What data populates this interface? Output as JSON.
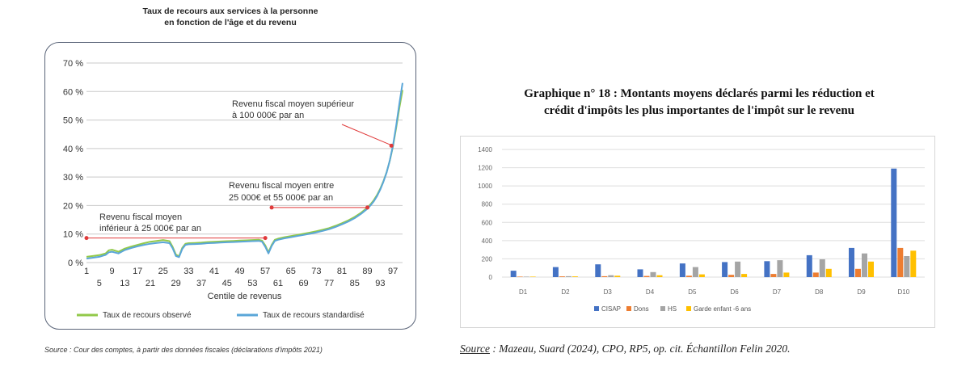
{
  "left": {
    "title_line1": "Taux de recours aux services à la personne",
    "title_line2": "en fonction de l'âge et du revenu",
    "source": "Source : Cour des comptes, à partir des données fiscales (déclarations d'impôts 2021)"
  },
  "right": {
    "title_line1": "Graphique n° 18 : Montants moyens déclarés parmi les réduction et",
    "title_line2": "crédit d'impôts les plus importantes de l'impôt sur le revenu",
    "source_label": "Source",
    "source_rest": " : Mazeau, Suard (2024), CPO, RP5, op. cit. Échantillon Felin 2020."
  },
  "chart_data": [
    {
      "type": "line",
      "xlabel": "Centile de revenus",
      "xlim": [
        1,
        100
      ],
      "ylim": [
        0,
        70
      ],
      "grid": true,
      "y_ticks": [
        "0 %",
        "10 %",
        "20 %",
        "30 %",
        "40 %",
        "50 %",
        "60 %",
        "70 %"
      ],
      "y_tick_values": [
        0,
        10,
        20,
        30,
        40,
        50,
        60,
        70
      ],
      "x_ticks_top": [
        "1",
        "9",
        "17",
        "25",
        "33",
        "41",
        "49",
        "57",
        "65",
        "73",
        "81",
        "89",
        "97"
      ],
      "x_ticks_bottom": [
        "5",
        "13",
        "21",
        "29",
        "37",
        "45",
        "53",
        "61",
        "69",
        "77",
        "85",
        "93"
      ],
      "legend_placement": "bottom",
      "series": [
        {
          "name": "Taux de recours observé",
          "color": "#92c94a",
          "x": [
            1,
            3,
            5,
            7,
            8,
            9,
            11,
            13,
            15,
            17,
            19,
            21,
            23,
            25,
            27,
            28,
            29,
            30,
            31,
            32,
            33,
            35,
            37,
            39,
            41,
            43,
            45,
            47,
            49,
            51,
            53,
            55,
            56,
            57,
            58,
            59,
            60,
            61,
            63,
            65,
            67,
            69,
            71,
            73,
            75,
            77,
            79,
            81,
            83,
            85,
            87,
            89,
            90,
            91,
            92,
            93,
            94,
            95,
            96,
            97,
            98,
            99,
            100
          ],
          "values": [
            2,
            2.3,
            2.6,
            3.2,
            4.3,
            4.5,
            3.8,
            4.9,
            5.6,
            6.2,
            6.8,
            7.3,
            7.6,
            7.9,
            7.5,
            5.5,
            2.8,
            2.2,
            5.2,
            6.6,
            6.8,
            6.9,
            7.0,
            7.2,
            7.3,
            7.4,
            7.5,
            7.6,
            7.7,
            7.8,
            7.9,
            8.0,
            7.7,
            6.0,
            3.6,
            6.2,
            8.0,
            8.4,
            8.9,
            9.3,
            9.7,
            10.1,
            10.5,
            11.0,
            11.5,
            12.1,
            12.9,
            13.8,
            14.8,
            16.0,
            17.5,
            19.3,
            20.5,
            21.9,
            23.7,
            25.9,
            28.5,
            31.7,
            35.7,
            40.8,
            47.2,
            54.3,
            60.5
          ]
        },
        {
          "name": "Taux de recours standardisé",
          "color": "#5aa6d8",
          "x": [
            1,
            3,
            5,
            7,
            8,
            9,
            11,
            13,
            15,
            17,
            19,
            21,
            23,
            25,
            27,
            28,
            29,
            30,
            31,
            32,
            33,
            35,
            37,
            39,
            41,
            43,
            45,
            47,
            49,
            51,
            53,
            55,
            56,
            57,
            58,
            59,
            60,
            61,
            63,
            65,
            67,
            69,
            71,
            73,
            75,
            77,
            79,
            81,
            83,
            85,
            87,
            89,
            90,
            91,
            92,
            93,
            94,
            95,
            96,
            97,
            98,
            99,
            100
          ],
          "values": [
            1.4,
            1.7,
            2.0,
            2.7,
            3.6,
            3.8,
            3.2,
            4.4,
            5.1,
            5.7,
            6.2,
            6.6,
            6.9,
            7.1,
            6.8,
            5.0,
            2.3,
            1.9,
            4.8,
            6.2,
            6.4,
            6.5,
            6.6,
            6.8,
            6.9,
            7.0,
            7.1,
            7.2,
            7.3,
            7.4,
            7.5,
            7.6,
            7.3,
            5.5,
            3.2,
            5.8,
            7.6,
            8.0,
            8.5,
            8.9,
            9.3,
            9.7,
            10.1,
            10.6,
            11.1,
            11.7,
            12.5,
            13.4,
            14.4,
            15.6,
            17.1,
            18.9,
            20.1,
            21.5,
            23.3,
            25.6,
            28.3,
            31.6,
            35.8,
            41.1,
            48.0,
            55.8,
            63.0
          ]
        }
      ],
      "annotations": [
        {
          "line1": "Revenu fiscal moyen supérieur",
          "line2": "à 100 000€ par an"
        },
        {
          "line1": "Revenu fiscal moyen entre",
          "line2": "25 000€ et 55 000€ par an"
        },
        {
          "line1": "Revenu fiscal moyen",
          "line2": "inférieur à 25 000€ par an"
        }
      ]
    },
    {
      "type": "bar",
      "categories": [
        "D1",
        "D2",
        "D3",
        "D4",
        "D5",
        "D6",
        "D7",
        "D8",
        "D9",
        "D10"
      ],
      "ylim": [
        0,
        1400
      ],
      "y_ticks": [
        "0",
        "200",
        "400",
        "600",
        "800",
        "1000",
        "1200",
        "1400"
      ],
      "y_tick_values": [
        0,
        200,
        400,
        600,
        800,
        1000,
        1200,
        1400
      ],
      "grid": true,
      "legend_placement": "bottom",
      "series": [
        {
          "name": "CISAP",
          "color": "#4472c4",
          "values": [
            70,
            110,
            140,
            85,
            150,
            165,
            175,
            240,
            320,
            1190
          ]
        },
        {
          "name": "Dons",
          "color": "#ed7d31",
          "values": [
            5,
            8,
            10,
            12,
            15,
            25,
            35,
            50,
            90,
            320
          ]
        },
        {
          "name": "HS",
          "color": "#a5a5a5",
          "values": [
            5,
            10,
            20,
            55,
            110,
            170,
            185,
            195,
            260,
            230
          ]
        },
        {
          "name": "Garde enfant -6 ans",
          "color": "#ffc000",
          "values": [
            5,
            8,
            15,
            20,
            30,
            35,
            50,
            90,
            170,
            290
          ]
        }
      ]
    }
  ]
}
